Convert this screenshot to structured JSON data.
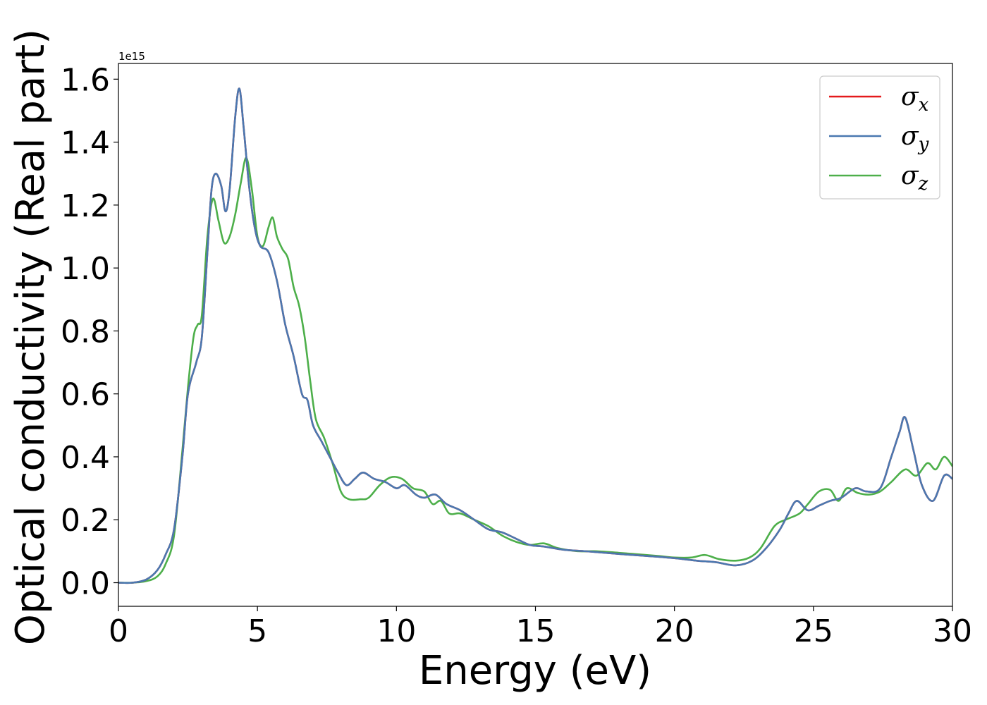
{
  "chart_data": {
    "type": "line",
    "xlabel": "Energy (eV)",
    "ylabel": "Optical conductivity (Real part)",
    "offset_text": "1e15",
    "xlim": [
      0,
      30
    ],
    "ylim": [
      -0.075,
      1.65
    ],
    "xticks": [
      0,
      5,
      10,
      15,
      20,
      25,
      30
    ],
    "xtick_labels": [
      "0",
      "5",
      "10",
      "15",
      "20",
      "25",
      "30"
    ],
    "yticks": [
      0.0,
      0.2,
      0.4,
      0.6,
      0.8,
      1.0,
      1.2,
      1.4,
      1.6
    ],
    "ytick_labels": [
      "0.0",
      "0.2",
      "0.4",
      "0.6",
      "0.8",
      "1.0",
      "1.2",
      "1.4",
      "1.6"
    ],
    "grid": false,
    "legend_position": "top-right",
    "series": [
      {
        "name": "σx",
        "legend_symbol": "σ",
        "legend_subscript": "x",
        "color": "#e41a1c",
        "points": [
          [
            0,
            0
          ],
          [
            0.5,
            0.0
          ],
          [
            1,
            0.01
          ],
          [
            1.4,
            0.04
          ],
          [
            1.7,
            0.09
          ],
          [
            2.0,
            0.17
          ],
          [
            2.3,
            0.4
          ],
          [
            2.5,
            0.6
          ],
          [
            2.8,
            0.7
          ],
          [
            3.0,
            0.78
          ],
          [
            3.2,
            1.05
          ],
          [
            3.35,
            1.25
          ],
          [
            3.5,
            1.3
          ],
          [
            3.7,
            1.26
          ],
          [
            3.85,
            1.18
          ],
          [
            4.0,
            1.25
          ],
          [
            4.2,
            1.48
          ],
          [
            4.35,
            1.57
          ],
          [
            4.5,
            1.45
          ],
          [
            4.7,
            1.26
          ],
          [
            4.9,
            1.13
          ],
          [
            5.1,
            1.07
          ],
          [
            5.4,
            1.05
          ],
          [
            5.7,
            0.96
          ],
          [
            6.0,
            0.82
          ],
          [
            6.3,
            0.72
          ],
          [
            6.6,
            0.6
          ],
          [
            6.8,
            0.58
          ],
          [
            7.0,
            0.5
          ],
          [
            7.3,
            0.45
          ],
          [
            7.6,
            0.4
          ],
          [
            7.9,
            0.35
          ],
          [
            8.2,
            0.31
          ],
          [
            8.5,
            0.33
          ],
          [
            8.8,
            0.35
          ],
          [
            9.2,
            0.33
          ],
          [
            9.6,
            0.32
          ],
          [
            10.0,
            0.3
          ],
          [
            10.3,
            0.31
          ],
          [
            10.7,
            0.28
          ],
          [
            11.0,
            0.27
          ],
          [
            11.4,
            0.28
          ],
          [
            11.8,
            0.25
          ],
          [
            12.3,
            0.23
          ],
          [
            12.8,
            0.2
          ],
          [
            13.3,
            0.17
          ],
          [
            13.8,
            0.16
          ],
          [
            14.3,
            0.14
          ],
          [
            14.8,
            0.12
          ],
          [
            15.3,
            0.115
          ],
          [
            16.0,
            0.105
          ],
          [
            16.8,
            0.1
          ],
          [
            17.5,
            0.095
          ],
          [
            18.2,
            0.09
          ],
          [
            19.0,
            0.085
          ],
          [
            20.0,
            0.078
          ],
          [
            20.8,
            0.07
          ],
          [
            21.5,
            0.065
          ],
          [
            22.2,
            0.055
          ],
          [
            22.8,
            0.07
          ],
          [
            23.3,
            0.11
          ],
          [
            23.8,
            0.17
          ],
          [
            24.1,
            0.22
          ],
          [
            24.4,
            0.26
          ],
          [
            24.8,
            0.23
          ],
          [
            25.2,
            0.245
          ],
          [
            25.6,
            0.26
          ],
          [
            26.0,
            0.27
          ],
          [
            26.5,
            0.3
          ],
          [
            26.9,
            0.29
          ],
          [
            27.4,
            0.3
          ],
          [
            27.8,
            0.4
          ],
          [
            28.1,
            0.48
          ],
          [
            28.3,
            0.525
          ],
          [
            28.6,
            0.42
          ],
          [
            28.9,
            0.31
          ],
          [
            29.3,
            0.26
          ],
          [
            29.7,
            0.34
          ],
          [
            30,
            0.33
          ]
        ]
      },
      {
        "name": "σy",
        "legend_symbol": "σ",
        "legend_subscript": "y",
        "color": "#4a78b0",
        "points": [
          [
            0,
            0
          ],
          [
            0.5,
            0.0
          ],
          [
            1,
            0.01
          ],
          [
            1.4,
            0.04
          ],
          [
            1.7,
            0.09
          ],
          [
            2.0,
            0.17
          ],
          [
            2.3,
            0.4
          ],
          [
            2.5,
            0.6
          ],
          [
            2.8,
            0.7
          ],
          [
            3.0,
            0.78
          ],
          [
            3.2,
            1.05
          ],
          [
            3.35,
            1.25
          ],
          [
            3.5,
            1.3
          ],
          [
            3.7,
            1.26
          ],
          [
            3.85,
            1.18
          ],
          [
            4.0,
            1.25
          ],
          [
            4.2,
            1.48
          ],
          [
            4.35,
            1.57
          ],
          [
            4.5,
            1.45
          ],
          [
            4.7,
            1.26
          ],
          [
            4.9,
            1.13
          ],
          [
            5.1,
            1.07
          ],
          [
            5.4,
            1.05
          ],
          [
            5.7,
            0.96
          ],
          [
            6.0,
            0.82
          ],
          [
            6.3,
            0.72
          ],
          [
            6.6,
            0.6
          ],
          [
            6.8,
            0.58
          ],
          [
            7.0,
            0.5
          ],
          [
            7.3,
            0.45
          ],
          [
            7.6,
            0.4
          ],
          [
            7.9,
            0.35
          ],
          [
            8.2,
            0.31
          ],
          [
            8.5,
            0.33
          ],
          [
            8.8,
            0.35
          ],
          [
            9.2,
            0.33
          ],
          [
            9.6,
            0.32
          ],
          [
            10.0,
            0.3
          ],
          [
            10.3,
            0.31
          ],
          [
            10.7,
            0.28
          ],
          [
            11.0,
            0.27
          ],
          [
            11.4,
            0.28
          ],
          [
            11.8,
            0.25
          ],
          [
            12.3,
            0.23
          ],
          [
            12.8,
            0.2
          ],
          [
            13.3,
            0.17
          ],
          [
            13.8,
            0.16
          ],
          [
            14.3,
            0.14
          ],
          [
            14.8,
            0.12
          ],
          [
            15.3,
            0.115
          ],
          [
            16.0,
            0.105
          ],
          [
            16.8,
            0.1
          ],
          [
            17.5,
            0.095
          ],
          [
            18.2,
            0.09
          ],
          [
            19.0,
            0.085
          ],
          [
            20.0,
            0.078
          ],
          [
            20.8,
            0.07
          ],
          [
            21.5,
            0.065
          ],
          [
            22.2,
            0.055
          ],
          [
            22.8,
            0.07
          ],
          [
            23.3,
            0.11
          ],
          [
            23.8,
            0.17
          ],
          [
            24.1,
            0.22
          ],
          [
            24.4,
            0.26
          ],
          [
            24.8,
            0.23
          ],
          [
            25.2,
            0.245
          ],
          [
            25.6,
            0.26
          ],
          [
            26.0,
            0.27
          ],
          [
            26.5,
            0.3
          ],
          [
            26.9,
            0.29
          ],
          [
            27.4,
            0.3
          ],
          [
            27.8,
            0.4
          ],
          [
            28.1,
            0.48
          ],
          [
            28.3,
            0.525
          ],
          [
            28.6,
            0.42
          ],
          [
            28.9,
            0.31
          ],
          [
            29.3,
            0.26
          ],
          [
            29.7,
            0.34
          ],
          [
            30,
            0.33
          ]
        ]
      },
      {
        "name": "σz",
        "legend_symbol": "σ",
        "legend_subscript": "z",
        "color": "#4daf4a",
        "points": [
          [
            0,
            0
          ],
          [
            0.5,
            0.0
          ],
          [
            1,
            0.005
          ],
          [
            1.4,
            0.02
          ],
          [
            1.7,
            0.06
          ],
          [
            2.0,
            0.15
          ],
          [
            2.3,
            0.42
          ],
          [
            2.5,
            0.62
          ],
          [
            2.7,
            0.78
          ],
          [
            2.85,
            0.82
          ],
          [
            3.0,
            0.85
          ],
          [
            3.2,
            1.1
          ],
          [
            3.4,
            1.22
          ],
          [
            3.6,
            1.15
          ],
          [
            3.8,
            1.08
          ],
          [
            4.0,
            1.1
          ],
          [
            4.2,
            1.17
          ],
          [
            4.4,
            1.27
          ],
          [
            4.6,
            1.35
          ],
          [
            4.8,
            1.25
          ],
          [
            5.0,
            1.1
          ],
          [
            5.2,
            1.07
          ],
          [
            5.4,
            1.13
          ],
          [
            5.55,
            1.16
          ],
          [
            5.7,
            1.1
          ],
          [
            5.9,
            1.06
          ],
          [
            6.1,
            1.03
          ],
          [
            6.3,
            0.94
          ],
          [
            6.5,
            0.88
          ],
          [
            6.7,
            0.78
          ],
          [
            6.9,
            0.64
          ],
          [
            7.1,
            0.52
          ],
          [
            7.4,
            0.46
          ],
          [
            7.7,
            0.38
          ],
          [
            8.0,
            0.29
          ],
          [
            8.3,
            0.265
          ],
          [
            8.7,
            0.265
          ],
          [
            9.0,
            0.27
          ],
          [
            9.4,
            0.31
          ],
          [
            9.8,
            0.335
          ],
          [
            10.2,
            0.33
          ],
          [
            10.6,
            0.3
          ],
          [
            11.0,
            0.29
          ],
          [
            11.3,
            0.25
          ],
          [
            11.6,
            0.26
          ],
          [
            11.9,
            0.22
          ],
          [
            12.3,
            0.22
          ],
          [
            12.8,
            0.2
          ],
          [
            13.3,
            0.18
          ],
          [
            13.8,
            0.15
          ],
          [
            14.3,
            0.13
          ],
          [
            14.8,
            0.12
          ],
          [
            15.3,
            0.125
          ],
          [
            15.8,
            0.11
          ],
          [
            16.5,
            0.1
          ],
          [
            17.2,
            0.1
          ],
          [
            18.0,
            0.095
          ],
          [
            18.7,
            0.09
          ],
          [
            19.4,
            0.085
          ],
          [
            20.0,
            0.08
          ],
          [
            20.6,
            0.08
          ],
          [
            21.1,
            0.088
          ],
          [
            21.6,
            0.075
          ],
          [
            22.2,
            0.07
          ],
          [
            22.7,
            0.08
          ],
          [
            23.1,
            0.11
          ],
          [
            23.6,
            0.18
          ],
          [
            24.0,
            0.2
          ],
          [
            24.5,
            0.22
          ],
          [
            24.8,
            0.25
          ],
          [
            25.2,
            0.29
          ],
          [
            25.6,
            0.295
          ],
          [
            25.9,
            0.26
          ],
          [
            26.2,
            0.3
          ],
          [
            26.6,
            0.285
          ],
          [
            27.0,
            0.28
          ],
          [
            27.4,
            0.29
          ],
          [
            27.8,
            0.32
          ],
          [
            28.3,
            0.36
          ],
          [
            28.7,
            0.34
          ],
          [
            29.1,
            0.38
          ],
          [
            29.4,
            0.36
          ],
          [
            29.7,
            0.4
          ],
          [
            30,
            0.37
          ]
        ]
      }
    ]
  }
}
